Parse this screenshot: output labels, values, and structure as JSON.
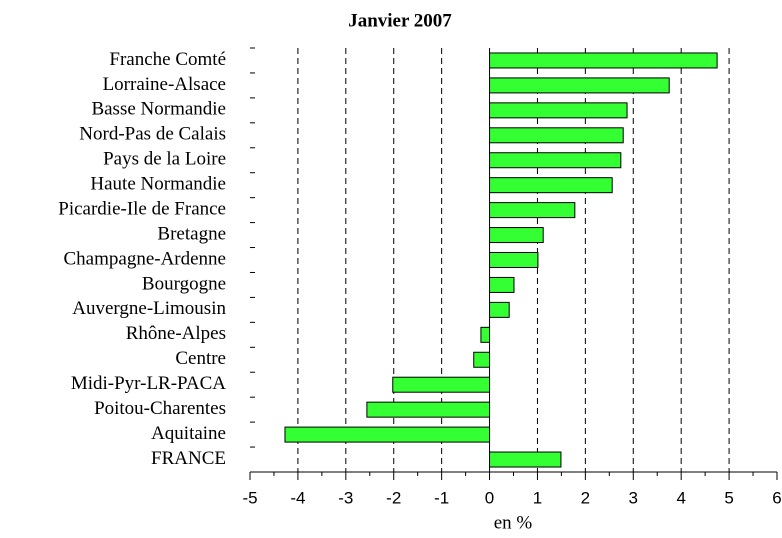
{
  "chart_data": {
    "type": "hbar",
    "title": "Janvier 2007",
    "xlabel": "en %",
    "categories": [
      "Franche Comté",
      "Lorraine-Alsace",
      "Basse Normandie",
      "Nord-Pas de Calais",
      "Pays de la Loire",
      "Haute Normandie",
      "Picardie-Ile de France",
      "Bretagne",
      "Champagne-Ardenne",
      "Bourgogne",
      "Auvergne-Limousin",
      "Rhône-Alpes",
      "Centre",
      "Midi-Pyr-LR-PACA",
      "Poitou-Charentes",
      "Aquitaine",
      "FRANCE"
    ],
    "values": [
      4.75,
      3.75,
      2.87,
      2.79,
      2.74,
      2.56,
      1.78,
      1.12,
      1.01,
      0.51,
      0.41,
      -0.18,
      -0.33,
      -2.02,
      -2.56,
      -4.27,
      1.49
    ],
    "color": "#33ff33",
    "xlim": [
      -5,
      6
    ],
    "xticks": [
      -5,
      -4,
      -3,
      -2,
      -1,
      0,
      1,
      2,
      3,
      4,
      5,
      6
    ],
    "grid": true
  }
}
